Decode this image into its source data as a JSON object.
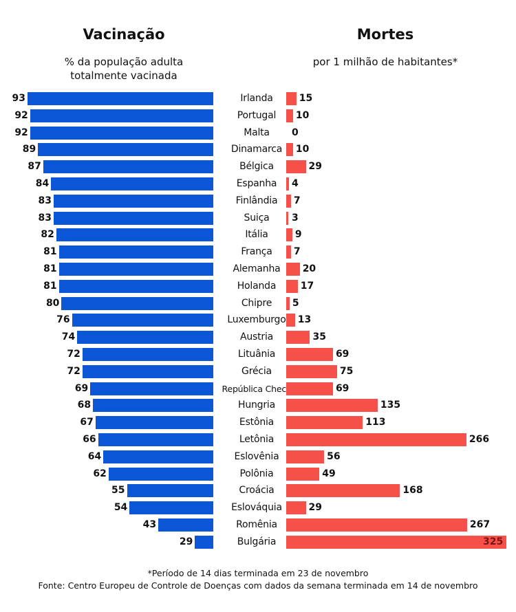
{
  "chart_data": [
    {
      "type": "bar",
      "orientation": "horizontal",
      "title": "Vacinação",
      "subtitle": "% da população adulta totalmente vacinada",
      "color": "#0b57d8",
      "direction": "right-to-left",
      "categories": [
        "Irlanda",
        "Portugal",
        "Malta",
        "Dinamarca",
        "Bélgica",
        "Espanha",
        "Finlândia",
        "Suiça",
        "Itália",
        "França",
        "Alemanha",
        "Holanda",
        "Chipre",
        "Luxemburgo",
        "Austria",
        "Lituânia",
        "Grécia",
        "República Checa",
        "Hungria",
        "Estônia",
        "Letônia",
        "Eslovênia",
        "Polônia",
        "Croácia",
        "Eslováquia",
        "Romênia",
        "Bulgária"
      ],
      "values": [
        93,
        92,
        92,
        89,
        87,
        84,
        83,
        83,
        82,
        81,
        81,
        81,
        80,
        76,
        74,
        72,
        72,
        69,
        68,
        67,
        66,
        64,
        62,
        55,
        54,
        43,
        29
      ]
    },
    {
      "type": "bar",
      "orientation": "horizontal",
      "title": "Mortes",
      "subtitle": "por 1 milhão de habitantes*",
      "color": "#f5504a",
      "categories": [
        "Irlanda",
        "Portugal",
        "Malta",
        "Dinamarca",
        "Bélgica",
        "Espanha",
        "Finlândia",
        "Suiça",
        "Itália",
        "França",
        "Alemanha",
        "Holanda",
        "Chipre",
        "Luxemburgo",
        "Austria",
        "Lituânia",
        "Grécia",
        "República Checa",
        "Hungria",
        "Estônia",
        "Letônia",
        "Eslovênia",
        "Polônia",
        "Croácia",
        "Eslováquia",
        "Romênia",
        "Bulgária"
      ],
      "values": [
        15,
        10,
        0,
        10,
        29,
        4,
        7,
        3,
        9,
        7,
        20,
        17,
        5,
        13,
        35,
        69,
        75,
        69,
        135,
        113,
        266,
        56,
        49,
        168,
        29,
        267,
        325
      ]
    }
  ],
  "header": {
    "left_title": "Vacinação",
    "left_sub1": "% da população adulta",
    "left_sub2": "totalmente vacinada",
    "right_title": "Mortes",
    "right_sub": "por 1 milhão de habitantes*"
  },
  "footer": {
    "note": "*Período de 14 dias terminada em 23 de novembro",
    "source": "Fonte: Centro Europeu de Controle de Doenças com dados da semana terminada em 14 de novembro"
  }
}
